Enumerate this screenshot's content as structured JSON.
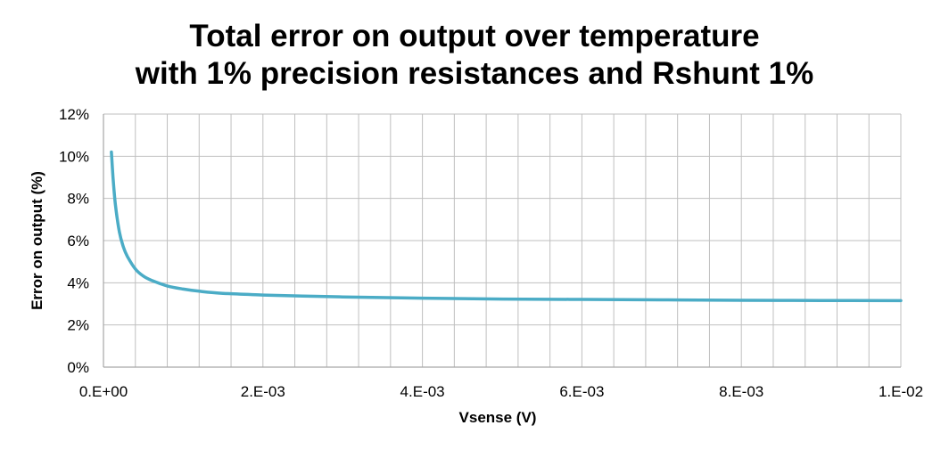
{
  "chart_data": {
    "type": "line",
    "title_line1": "Total error on output over temperature",
    "title_line2": "with 1% precision resistances and Rshunt 1%",
    "xlabel": "Vsense (V)",
    "ylabel": "Error on output (%)",
    "xlim": [
      0,
      0.01
    ],
    "ylim": [
      0,
      12
    ],
    "x_ticks": [
      0,
      0.002,
      0.004,
      0.006,
      0.008,
      0.01
    ],
    "x_tick_labels": [
      "0.E+00",
      "2.E-03",
      "4.E-03",
      "6.E-03",
      "8.E-03",
      "1.E-02"
    ],
    "y_ticks": [
      0,
      2,
      4,
      6,
      8,
      10,
      12
    ],
    "y_tick_labels": [
      "0%",
      "2%",
      "4%",
      "6%",
      "8%",
      "10%",
      "12%"
    ],
    "x_grid_step": 0.0004,
    "grid": true,
    "series": [
      {
        "color": "#4BACC6",
        "x": [
          0.0001,
          0.00012,
          0.00015,
          0.0002,
          0.00025,
          0.0003,
          0.0004,
          0.0005,
          0.0006,
          0.0008,
          0.001,
          0.0012,
          0.0015,
          0.002,
          0.0025,
          0.003,
          0.004,
          0.005,
          0.006,
          0.007,
          0.008,
          0.009,
          0.01
        ],
        "y": [
          10.2,
          9.0,
          7.7,
          6.4,
          5.7,
          5.25,
          4.65,
          4.32,
          4.12,
          3.85,
          3.7,
          3.6,
          3.5,
          3.42,
          3.37,
          3.33,
          3.27,
          3.23,
          3.21,
          3.19,
          3.17,
          3.16,
          3.15
        ]
      }
    ]
  }
}
